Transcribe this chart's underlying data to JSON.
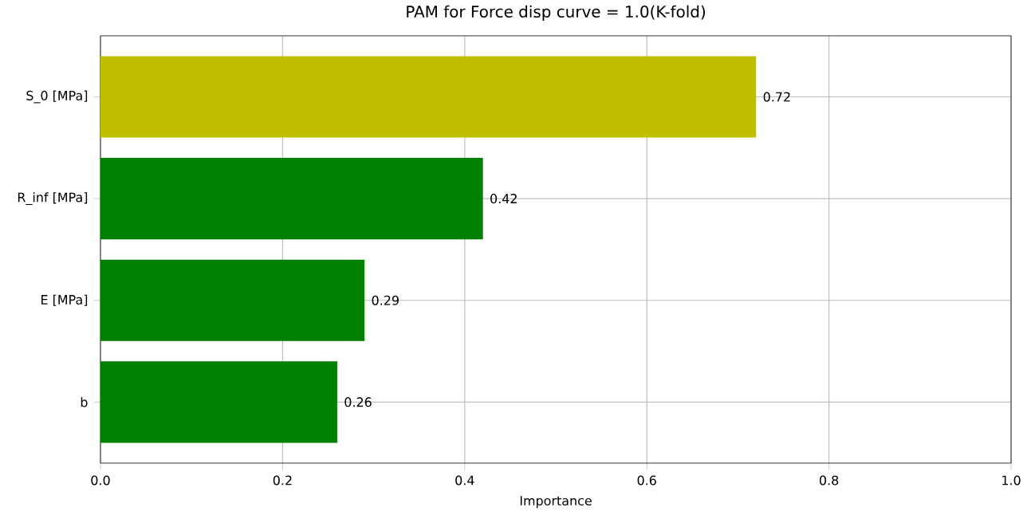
{
  "chart_data": {
    "type": "bar",
    "orientation": "horizontal",
    "title": "PAM for Force disp curve = 1.0(K-fold)",
    "xlabel": "Importance",
    "categories": [
      "S_0 [MPa]",
      "R_inf [MPa]",
      "E [MPa]",
      "b"
    ],
    "values": [
      0.72,
      0.42,
      0.29,
      0.26
    ],
    "colors": [
      "#bfbf00",
      "#008000",
      "#008000",
      "#008000"
    ],
    "xlim": [
      0,
      1
    ],
    "xticks": [
      {
        "value": 0,
        "label": "0.0"
      },
      {
        "value": 0.2,
        "label": "0.2"
      },
      {
        "value": 0.4,
        "label": "0.4"
      },
      {
        "value": 0.6,
        "label": "0.6"
      },
      {
        "value": 0.8,
        "label": "0.8"
      },
      {
        "value": 1,
        "label": "1.0"
      }
    ],
    "grid": true,
    "data_labels": true
  }
}
